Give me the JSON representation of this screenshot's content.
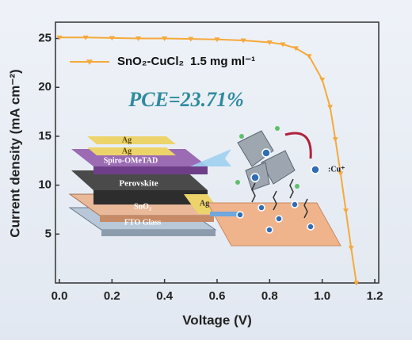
{
  "chart_data": {
    "type": "line",
    "xlabel": "Voltage (V)",
    "ylabel": "Current density (mA cm⁻²)",
    "x": [
      0,
      0.1,
      0.2,
      0.3,
      0.4,
      0.5,
      0.6,
      0.7,
      0.8,
      0.85,
      0.9,
      0.95,
      1.0,
      1.03,
      1.05,
      1.07,
      1.09,
      1.11,
      1.13
    ],
    "series": [
      {
        "name": "SnO₂-CuCl₂",
        "color": "#f5a93c",
        "values": [
          25.1,
          25.1,
          25.05,
          25.0,
          25.0,
          24.95,
          24.9,
          24.8,
          24.6,
          24.4,
          24.0,
          23.2,
          20.8,
          18.0,
          14.7,
          11.2,
          7.4,
          3.6,
          0
        ]
      }
    ],
    "legend_note": "1.5 mg ml⁻¹",
    "annotation": "PCE=23.71%",
    "inset_labels": [
      "Ag",
      "Ag",
      "Spiro-OMeTAD",
      "Perovskite",
      "SnO₂",
      "FTO Glass",
      "Ag",
      ":Cu⁺"
    ],
    "xlim": [
      0,
      1.2
    ],
    "xticks": [
      {
        "value": 0,
        "label": "0.0"
      },
      0.2,
      0.4,
      0.6,
      0.8,
      {
        "value": 1,
        "label": "1.0"
      },
      1.2
    ],
    "ylim": [
      0,
      26.5
    ],
    "yticks": [
      5,
      10,
      15,
      20,
      25
    ]
  }
}
